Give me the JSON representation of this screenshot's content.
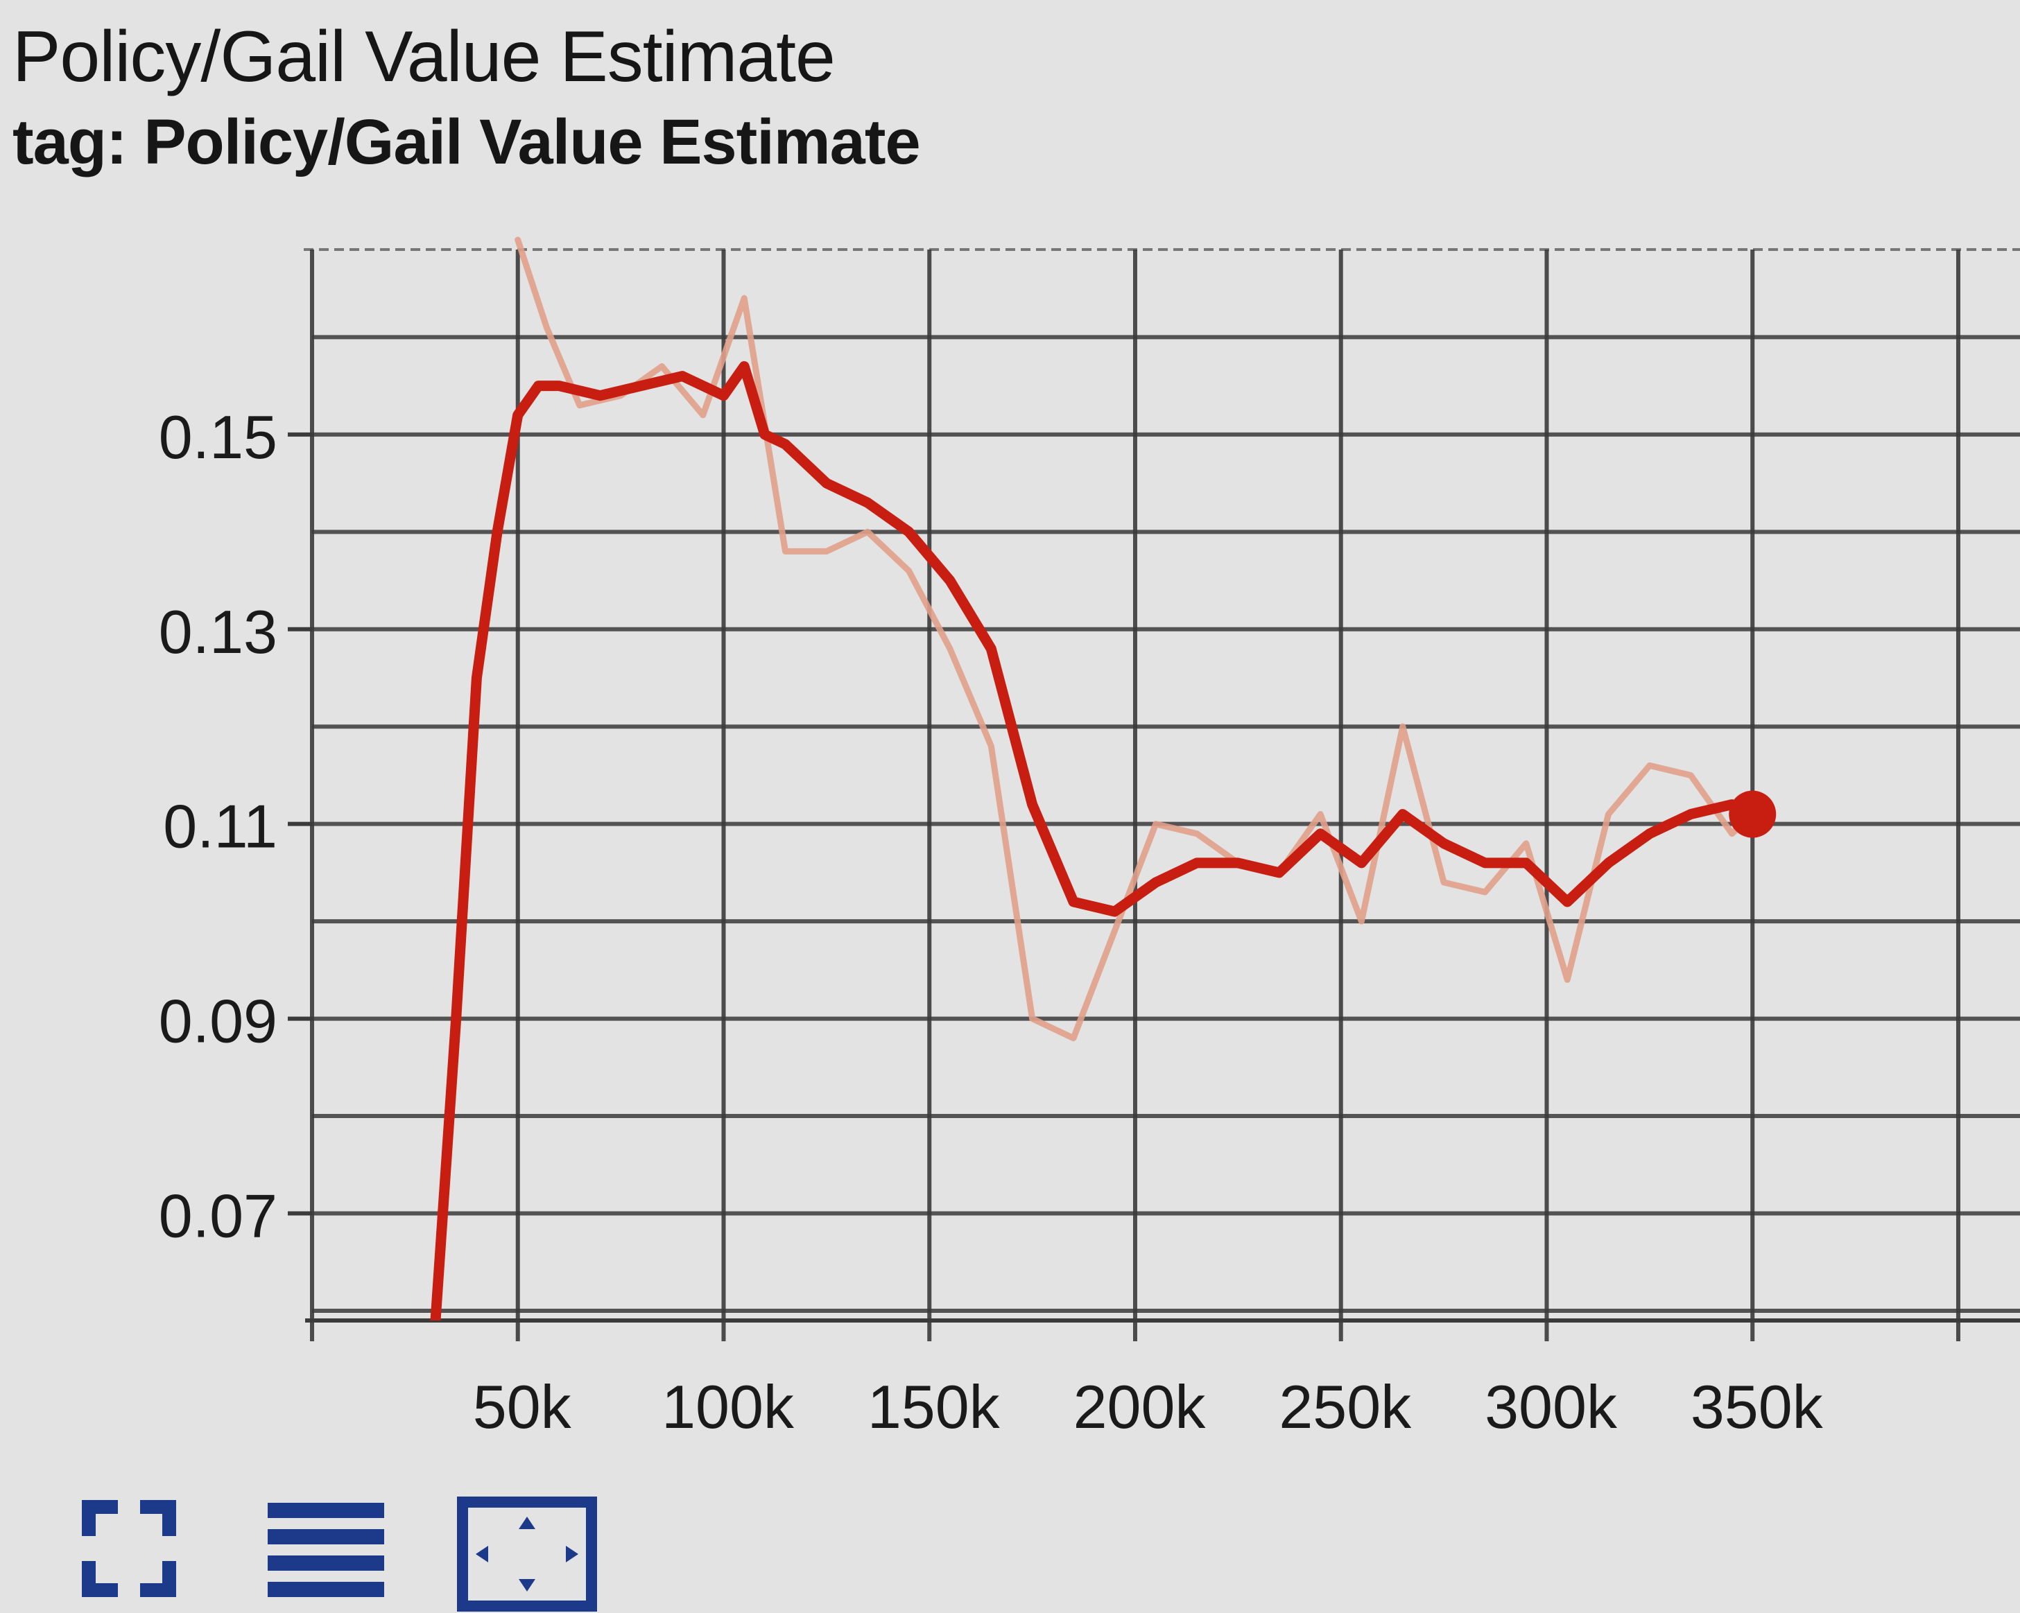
{
  "card": {
    "title": "Policy/Gail Value Estimate",
    "subtitle": "tag: Policy/Gail Value Estimate"
  },
  "chart_data": {
    "type": "line",
    "title": "Policy/Gail Value Estimate",
    "xlabel": "",
    "ylabel": "",
    "xlim": [
      0,
      415000
    ],
    "ylim": [
      0.059,
      0.169
    ],
    "x_ticks": [
      50000,
      100000,
      150000,
      200000,
      250000,
      300000,
      350000
    ],
    "x_tick_labels": [
      "50k",
      "100k",
      "150k",
      "200k",
      "250k",
      "300k",
      "350k"
    ],
    "y_ticks": [
      0.07,
      0.09,
      0.11,
      0.13,
      0.15
    ],
    "y_tick_labels": [
      "0.07",
      "0.09",
      "0.11",
      "0.13",
      "0.15"
    ],
    "grid": true,
    "colors": {
      "smoothed": "#c81e12",
      "raw": "#e0a08a",
      "grid": "#3b3b3b",
      "background": "#e3e3e3"
    },
    "series": [
      {
        "role": "raw",
        "x": [
          50000,
          57000,
          65000,
          75000,
          85000,
          95000,
          105000,
          115000,
          125000,
          135000,
          145000,
          155000,
          165000,
          175000,
          185000,
          195000,
          205000,
          215000,
          225000,
          235000,
          245000,
          255000,
          265000,
          275000,
          285000,
          295000,
          305000,
          315000,
          325000,
          335000,
          345000,
          350000
        ],
        "y": [
          0.17,
          0.161,
          0.153,
          0.154,
          0.157,
          0.152,
          0.164,
          0.138,
          0.138,
          0.14,
          0.136,
          0.128,
          0.118,
          0.09,
          0.088,
          0.099,
          0.11,
          0.109,
          0.106,
          0.105,
          0.111,
          0.1,
          0.12,
          0.104,
          0.103,
          0.108,
          0.094,
          0.111,
          0.116,
          0.115,
          0.109,
          0.111
        ]
      },
      {
        "role": "smoothed",
        "x": [
          30000,
          35000,
          40000,
          45000,
          50000,
          55000,
          60000,
          70000,
          80000,
          90000,
          100000,
          105000,
          110000,
          115000,
          125000,
          135000,
          145000,
          155000,
          165000,
          175000,
          185000,
          195000,
          205000,
          215000,
          225000,
          235000,
          245000,
          255000,
          265000,
          275000,
          285000,
          295000,
          305000,
          315000,
          325000,
          335000,
          345000,
          350000
        ],
        "y": [
          0.059,
          0.09,
          0.125,
          0.14,
          0.152,
          0.155,
          0.155,
          0.154,
          0.155,
          0.156,
          0.154,
          0.157,
          0.15,
          0.149,
          0.145,
          0.143,
          0.14,
          0.135,
          0.128,
          0.112,
          0.102,
          0.101,
          0.104,
          0.106,
          0.106,
          0.105,
          0.109,
          0.106,
          0.111,
          0.108,
          0.106,
          0.106,
          0.102,
          0.106,
          0.109,
          0.111,
          0.112,
          0.111
        ]
      }
    ]
  },
  "toolbar": {
    "buttons": [
      {
        "icon": "fullscreen-icon"
      },
      {
        "icon": "toggle-log-scale-icon"
      },
      {
        "icon": "fit-domain-icon"
      }
    ]
  }
}
